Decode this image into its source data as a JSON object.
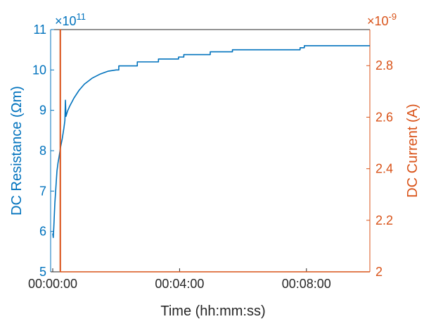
{
  "chart_data": {
    "type": "line",
    "title": "",
    "xlabel": "Time (hh:mm:ss)",
    "x_ticks": [
      {
        "t": 0,
        "label": "00:00:00"
      },
      {
        "t": 240,
        "label": "00:04:00"
      },
      {
        "t": 480,
        "label": "00:08:00"
      }
    ],
    "xlim": [
      -4,
      600
    ],
    "left_axis": {
      "label": "DC Resistance (Ωm)",
      "exponent": "×10",
      "exponent_power": "11",
      "color": "#0072BD",
      "ylim": [
        5,
        11
      ],
      "ticks": [
        {
          "v": 5,
          "label": "5"
        },
        {
          "v": 6,
          "label": "6"
        },
        {
          "v": 7,
          "label": "7"
        },
        {
          "v": 8,
          "label": "8"
        },
        {
          "v": 9,
          "label": "9"
        },
        {
          "v": 10,
          "label": "10"
        },
        {
          "v": 11,
          "label": "11"
        }
      ]
    },
    "right_axis": {
      "label": "DC Current (A)",
      "exponent": "×10",
      "exponent_power": "-9",
      "color": "#D95319",
      "ylim": [
        2.0,
        2.94
      ],
      "ticks": [
        {
          "v": 2.0,
          "label": "2"
        },
        {
          "v": 2.2,
          "label": "2.2"
        },
        {
          "v": 2.4,
          "label": "2.4"
        },
        {
          "v": 2.6,
          "label": "2.6"
        },
        {
          "v": 2.8,
          "label": "2.8"
        }
      ]
    },
    "series": [
      {
        "axis": "left",
        "color": "#0072BD",
        "points": [
          [
            0,
            5.95
          ],
          [
            1,
            5.85
          ],
          [
            2,
            6.1
          ],
          [
            4,
            6.7
          ],
          [
            6,
            7.1
          ],
          [
            8,
            7.5
          ],
          [
            10,
            7.7
          ],
          [
            12,
            7.85
          ],
          [
            15,
            8.1
          ],
          [
            18,
            8.3
          ],
          [
            21,
            8.55
          ],
          [
            23,
            8.75
          ],
          [
            24,
            9.25
          ],
          [
            25,
            8.85
          ],
          [
            28,
            8.98
          ],
          [
            32,
            9.1
          ],
          [
            40,
            9.3
          ],
          [
            50,
            9.5
          ],
          [
            60,
            9.65
          ],
          [
            75,
            9.8
          ],
          [
            90,
            9.9
          ],
          [
            105,
            9.97
          ],
          [
            120,
            10.0
          ],
          [
            125,
            10.0
          ],
          [
            125,
            10.1
          ],
          [
            160,
            10.1
          ],
          [
            160,
            10.2
          ],
          [
            200,
            10.2
          ],
          [
            200,
            10.27
          ],
          [
            238,
            10.27
          ],
          [
            238,
            10.32
          ],
          [
            248,
            10.32
          ],
          [
            248,
            10.38
          ],
          [
            298,
            10.38
          ],
          [
            298,
            10.45
          ],
          [
            340,
            10.45
          ],
          [
            340,
            10.5
          ],
          [
            468,
            10.5
          ],
          [
            468,
            10.55
          ],
          [
            476,
            10.55
          ],
          [
            476,
            10.6
          ],
          [
            600,
            10.6
          ]
        ]
      },
      {
        "axis": "right",
        "color": "#D95319",
        "points": [
          [
            14,
            2.0
          ],
          [
            14,
            2.94
          ],
          [
            14.6,
            2.94
          ],
          [
            14.6,
            2.0
          ],
          [
            600,
            2.0
          ]
        ]
      }
    ]
  }
}
